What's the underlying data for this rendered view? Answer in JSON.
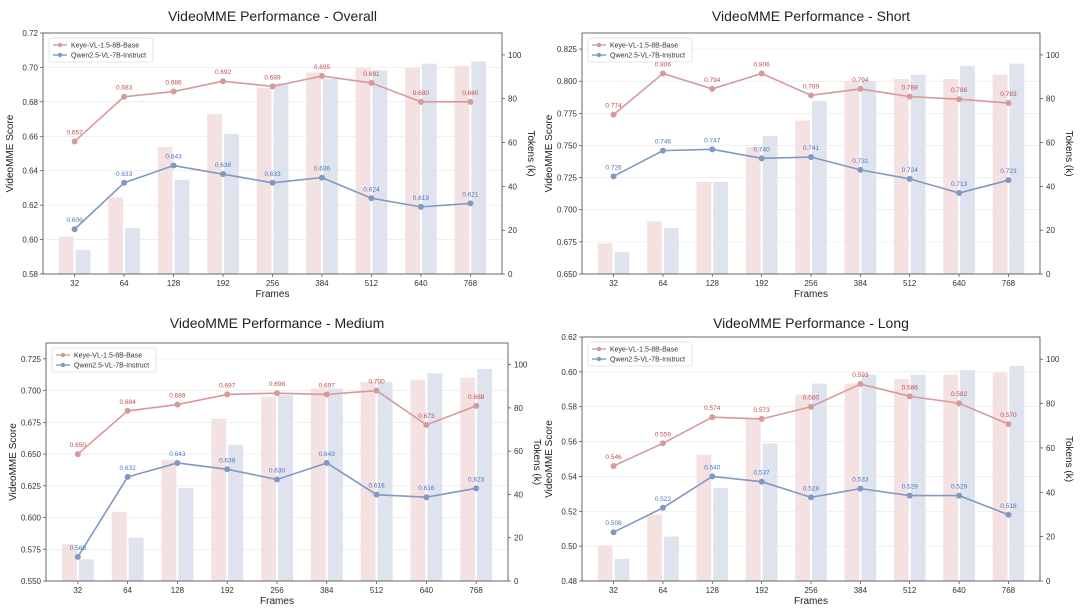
{
  "colors": {
    "keye_line": "#d79a9a",
    "qwen_line": "#8198c2",
    "keye_bar": "#f4e2e3",
    "qwen_bar": "#dfe3ee",
    "keye_label": "#c0504d",
    "qwen_label": "#4a78c2",
    "grid": "#e6e6e6",
    "axis": "#444444"
  },
  "chart_data": [
    {
      "type": "bar+line",
      "title": "VideoMME Performance - Overall",
      "xlabel": "Frames",
      "ylabel": "VideoMME Score",
      "y2label": "Tokens (k)",
      "categories": [
        "32",
        "64",
        "128",
        "192",
        "256",
        "384",
        "512",
        "640",
        "768"
      ],
      "ylim": [
        0.58,
        0.72
      ],
      "yticks": [
        "0.58",
        "0.60",
        "0.62",
        "0.64",
        "0.66",
        "0.68",
        "0.70",
        "0.72"
      ],
      "y2lim": [
        0,
        110
      ],
      "y2ticks": [
        "0",
        "20",
        "40",
        "60",
        "80",
        "100"
      ],
      "legend": [
        "Keye-VL-1.5-8B-Base",
        "Qwen2.5-VL-7B-Instruct"
      ],
      "series": [
        {
          "name": "Keye-VL-1.5-8B-Base",
          "values": [
            0.657,
            0.683,
            0.686,
            0.692,
            0.689,
            0.695,
            0.691,
            0.68,
            0.68
          ],
          "labels": [
            "0.657",
            "0.683",
            "0.686",
            "0.692",
            "0.689",
            "0.695",
            "0.691",
            "0.680",
            "0.680"
          ],
          "tokens": [
            17,
            35,
            58,
            73,
            85,
            92,
            94,
            94,
            95
          ]
        },
        {
          "name": "Qwen2.5-VL-7B-Instruct",
          "values": [
            0.606,
            0.633,
            0.643,
            0.638,
            0.633,
            0.636,
            0.624,
            0.619,
            0.621
          ],
          "labels": [
            "0.606",
            "0.633",
            "0.643",
            "0.638",
            "0.633",
            "0.636",
            "0.624",
            "0.619",
            "0.621"
          ],
          "tokens": [
            11,
            21,
            43,
            64,
            87,
            89,
            93,
            96,
            97
          ]
        }
      ]
    },
    {
      "type": "bar+line",
      "title": "VideoMME Performance - Short",
      "xlabel": "Frames",
      "ylabel": "VideoMME Score",
      "y2label": "Tokens (k)",
      "categories": [
        "32",
        "64",
        "128",
        "192",
        "256",
        "384",
        "512",
        "640",
        "768"
      ],
      "ylim": [
        0.65,
        0.8375
      ],
      "yticks": [
        "0.650",
        "0.675",
        "0.700",
        "0.725",
        "0.750",
        "0.775",
        "0.800",
        "0.825"
      ],
      "y2lim": [
        0,
        110
      ],
      "y2ticks": [
        "0",
        "20",
        "40",
        "60",
        "80",
        "100"
      ],
      "legend": [
        "Keye-VL-1.5-8B-Base",
        "Qwen2.5-VL-7B-Instruct"
      ],
      "series": [
        {
          "name": "Keye-VL-1.5-8B-Base",
          "values": [
            0.774,
            0.806,
            0.794,
            0.806,
            0.789,
            0.794,
            0.788,
            0.786,
            0.783
          ],
          "labels": [
            "0.774",
            "0.806",
            "0.794",
            "0.806",
            "0.789",
            "0.794",
            "0.788",
            "0.786",
            "0.783"
          ],
          "tokens": [
            14,
            24,
            42,
            58,
            70,
            88,
            89,
            89,
            91
          ]
        },
        {
          "name": "Qwen2.5-VL-7B-Instruct",
          "values": [
            0.726,
            0.746,
            0.747,
            0.74,
            0.741,
            0.731,
            0.724,
            0.713,
            0.723
          ],
          "labels": [
            "0.726",
            "0.746",
            "0.747",
            "0.740",
            "0.741",
            "0.731",
            "0.724",
            "0.713",
            "0.723"
          ],
          "tokens": [
            10,
            21,
            42,
            63,
            79,
            88,
            91,
            95,
            96
          ]
        }
      ]
    },
    {
      "type": "bar+line",
      "title": "VideoMME Performance - Medium",
      "xlabel": "Frames",
      "ylabel": "VideoMME Score",
      "y2label": "Tokens (k)",
      "categories": [
        "32",
        "64",
        "128",
        "192",
        "256",
        "384",
        "512",
        "640",
        "768"
      ],
      "ylim": [
        0.55,
        0.7375
      ],
      "yticks": [
        "0.550",
        "0.575",
        "0.600",
        "0.625",
        "0.650",
        "0.675",
        "0.700",
        "0.725"
      ],
      "y2lim": [
        0,
        110
      ],
      "y2ticks": [
        "0",
        "20",
        "40",
        "60",
        "80",
        "100"
      ],
      "legend": [
        "Keye-VL-1.5-8B-Base",
        "Qwen2.5-VL-7B-Instruct"
      ],
      "series": [
        {
          "name": "Keye-VL-1.5-8B-Base",
          "values": [
            0.65,
            0.684,
            0.689,
            0.697,
            0.698,
            0.697,
            0.7,
            0.673,
            0.688
          ],
          "labels": [
            "0.650",
            "0.684",
            "0.689",
            "0.697",
            "0.698",
            "0.697",
            "0.700",
            "0.673",
            "0.688"
          ],
          "tokens": [
            17,
            32,
            56,
            75,
            85,
            89,
            92,
            93,
            94
          ]
        },
        {
          "name": "Qwen2.5-VL-7B-Instruct",
          "values": [
            0.569,
            0.632,
            0.643,
            0.638,
            0.63,
            0.643,
            0.618,
            0.616,
            0.623
          ],
          "labels": [
            "0.569",
            "0.632",
            "0.643",
            "0.638",
            "0.630",
            "0.643",
            "0.618",
            "0.616",
            "0.623"
          ],
          "tokens": [
            10,
            20,
            43,
            63,
            86,
            89,
            92,
            96,
            98
          ]
        }
      ]
    },
    {
      "type": "bar+line",
      "title": "VideoMME Performance - Long",
      "xlabel": "Frames",
      "ylabel": "VideoMME Score",
      "y2label": "Tokens (k)",
      "categories": [
        "32",
        "64",
        "128",
        "192",
        "256",
        "384",
        "512",
        "640",
        "768"
      ],
      "ylim": [
        0.48,
        0.62
      ],
      "yticks": [
        "0.48",
        "0.50",
        "0.52",
        "0.54",
        "0.56",
        "0.58",
        "0.60",
        "0.62"
      ],
      "y2lim": [
        0,
        110
      ],
      "y2ticks": [
        "0",
        "20",
        "40",
        "60",
        "80",
        "100"
      ],
      "legend": [
        "Keye-VL-1.5-8B-Base",
        "Qwen2.5-VL-7B-Instruct"
      ],
      "series": [
        {
          "name": "Keye-VL-1.5-8B-Base",
          "values": [
            0.546,
            0.559,
            0.574,
            0.573,
            0.58,
            0.593,
            0.586,
            0.582,
            0.57
          ],
          "labels": [
            "0.546",
            "0.559",
            "0.574",
            "0.573",
            "0.580",
            "0.593",
            "0.586",
            "0.582",
            "0.570"
          ],
          "tokens": [
            16,
            30,
            57,
            73,
            84,
            89,
            91,
            93,
            94
          ]
        },
        {
          "name": "Qwen2.5-VL-7B-Instruct",
          "values": [
            0.508,
            0.522,
            0.54,
            0.537,
            0.528,
            0.533,
            0.529,
            0.529,
            0.518
          ],
          "labels": [
            "0.508",
            "0.522",
            "0.540",
            "0.537",
            "0.528",
            "0.533",
            "0.529",
            "0.529",
            "0.518"
          ],
          "tokens": [
            10,
            20,
            42,
            62,
            89,
            93,
            93,
            95,
            97
          ]
        }
      ]
    }
  ]
}
